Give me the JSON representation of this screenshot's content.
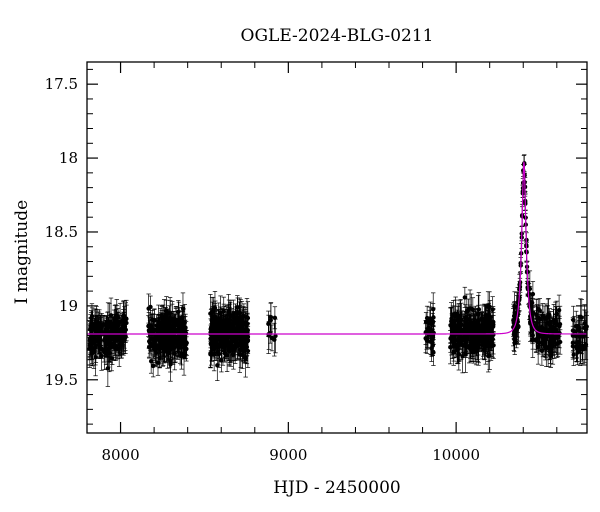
{
  "chart_data": {
    "type": "scatter",
    "title": "OGLE-2024-BLG-0211",
    "xlabel": "HJD - 2450000",
    "ylabel": "I magnitude",
    "xlim": [
      7800,
      10780
    ],
    "ylim": [
      19.86,
      17.35
    ],
    "y_inverted": true,
    "x_ticks": [
      {
        "value": 8000,
        "label": "8000"
      },
      {
        "value": 9000,
        "label": "9000"
      },
      {
        "value": 10000,
        "label": "10000"
      }
    ],
    "y_ticks": [
      {
        "value": 17.5,
        "label": "17.5"
      },
      {
        "value": 18,
        "label": "18"
      },
      {
        "value": 18.5,
        "label": "18.5"
      },
      {
        "value": 19,
        "label": "19"
      },
      {
        "value": 19.5,
        "label": "19.5"
      }
    ],
    "x_minor_step": 200,
    "y_minor_step": 0.1,
    "baseline_mag": 19.19,
    "model": {
      "name": "microlensing model",
      "color": "#cc00cc",
      "t0": 10404,
      "tE": 26,
      "u0": 0.36,
      "baseline": 19.19
    },
    "observations": {
      "color": "#000000",
      "seasons": [
        {
          "start": 7815,
          "end": 8035,
          "density": 1.0
        },
        {
          "start": 8165,
          "end": 8395,
          "density": 1.1
        },
        {
          "start": 8535,
          "end": 8760,
          "density": 1.4
        },
        {
          "start": 8880,
          "end": 8925,
          "density": 0.25
        },
        {
          "start": 9815,
          "end": 9870,
          "density": 0.6
        },
        {
          "start": 9965,
          "end": 10225,
          "density": 1.0
        },
        {
          "start": 10340,
          "end": 10465,
          "density": 0.9
        },
        {
          "start": 10475,
          "end": 10620,
          "density": 0.8
        },
        {
          "start": 10695,
          "end": 10780,
          "density": 0.5
        }
      ],
      "scatter_sigma": 0.07,
      "typical_error": 0.1
    }
  }
}
